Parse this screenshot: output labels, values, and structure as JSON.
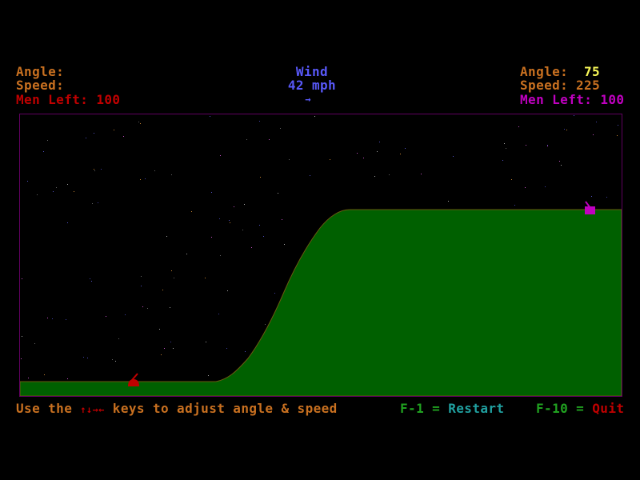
{
  "left_player": {
    "angle_label": "Angle:",
    "angle_value": "",
    "speed_label": "Speed:",
    "speed_value": "",
    "men_left_label": "Men Left:",
    "men_left_value": "100",
    "color": "#c00000"
  },
  "right_player": {
    "angle_label": "Angle:",
    "angle_value": "75",
    "speed_label": "Speed:",
    "speed_value": "225",
    "men_left_label": "Men Left:",
    "men_left_value": "100",
    "color": "#c000c0"
  },
  "wind": {
    "label": "Wind",
    "value": "42 mph",
    "direction_icon": "arrow-right-icon",
    "arrow": "→",
    "color": "#5858f8"
  },
  "footer": {
    "instr_prefix": "Use the ",
    "arrow_keys": "↑↓→←",
    "instr_suffix": " keys to adjust angle & speed",
    "restart_key": "F-1 =",
    "restart_label": "Restart",
    "quit_key": "F-10 =",
    "quit_label": "Quit"
  },
  "colors": {
    "terrain": "#006000",
    "border": "#600060",
    "label": "#c87020",
    "highlight": "#f8f858",
    "key": "#20a020",
    "restart": "#20a0a0",
    "quit": "#c00000"
  }
}
